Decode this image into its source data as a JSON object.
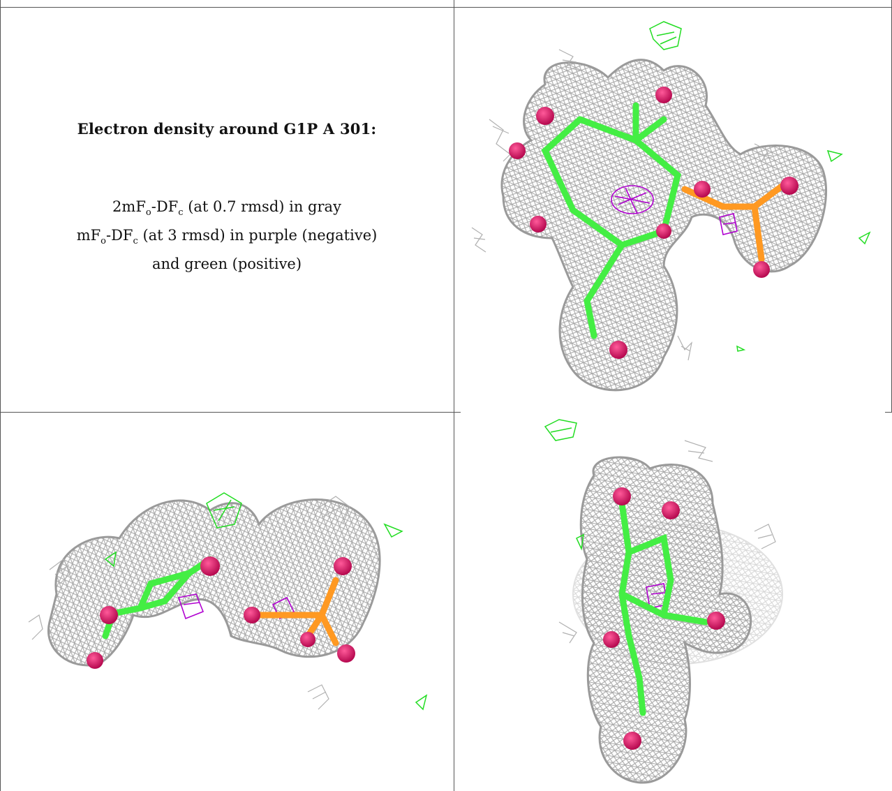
{
  "caption": {
    "title": "Electron density around G1P A 301:",
    "line1_prefix": "2mF",
    "line1_sub_o": "o",
    "line1_mid": "-DF",
    "line1_sub_c": "c",
    "line1_suffix": " (at 0.7 rmsd) in gray",
    "line2_prefix": "mF",
    "line2_sub_o": "o",
    "line2_mid": "-DF",
    "line2_sub_c": "c",
    "line2_suffix": " (at 3 rmsd) in purple (negative)",
    "line3": "and green (positive)"
  },
  "colors": {
    "mesh_gray": "#a8a8a8",
    "negative_purple": "#b000d0",
    "positive_green": "#22dd22",
    "carbon_green": "#44ee44",
    "oxygen_red": "#dd1166",
    "phosphorus_orange": "#ff9922",
    "grid_line": "#555555"
  },
  "panels": [
    {
      "name": "view-top-right",
      "content": "density-map-render"
    },
    {
      "name": "view-bottom-left",
      "content": "density-map-render"
    },
    {
      "name": "view-bottom-right",
      "content": "density-map-render"
    }
  ]
}
